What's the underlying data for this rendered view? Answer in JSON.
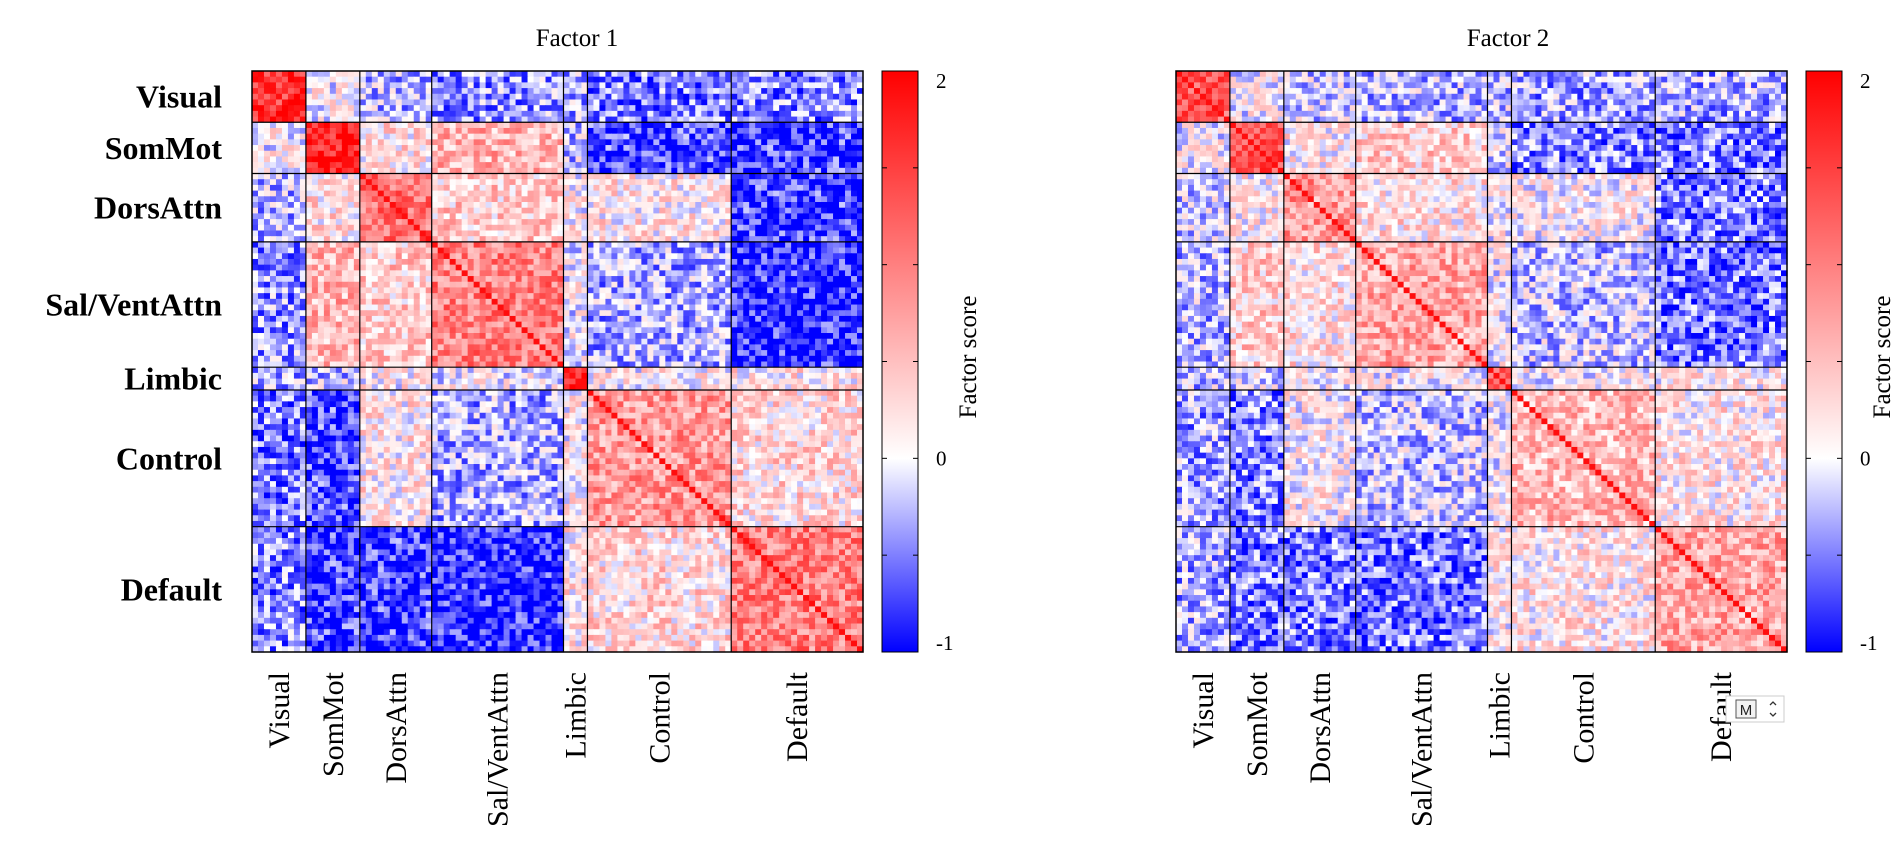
{
  "chart_data": [
    {
      "type": "heatmap",
      "title": "Factor 1",
      "networks": [
        "Visual",
        "SomMot",
        "DorsAttn",
        "Sal/VentAttn",
        "Limbic",
        "Control",
        "Default"
      ],
      "network_sizes": [
        9,
        9,
        12,
        22,
        4,
        24,
        22
      ],
      "colorbar": {
        "label": "Factor score",
        "range": [
          -1,
          2
        ],
        "ticks": [
          "2",
          "0",
          "-1"
        ],
        "tick_values": [
          2,
          0,
          -1
        ],
        "colors": [
          "#0000ff",
          "#ffffff",
          "#ff0000"
        ]
      },
      "block_means": [
        [
          1.6,
          0.05,
          -0.25,
          -0.4,
          -0.3,
          -0.5,
          -0.45
        ],
        [
          0.05,
          1.8,
          0.25,
          0.6,
          -0.2,
          -0.7,
          -0.75
        ],
        [
          -0.25,
          0.25,
          1.1,
          0.4,
          0.1,
          0.2,
          -0.75
        ],
        [
          -0.4,
          0.6,
          0.4,
          1.0,
          0.0,
          -0.3,
          -0.85
        ],
        [
          -0.3,
          -0.2,
          0.1,
          0.0,
          1.5,
          0.1,
          0.2
        ],
        [
          -0.5,
          -0.7,
          0.2,
          -0.3,
          0.1,
          0.8,
          0.3
        ],
        [
          -0.45,
          -0.75,
          -0.75,
          -0.85,
          0.2,
          0.3,
          1.0
        ]
      ]
    },
    {
      "type": "heatmap",
      "title": "Factor 2",
      "networks": [
        "Visual",
        "SomMot",
        "DorsAttn",
        "Sal/VentAttn",
        "Limbic",
        "Control",
        "Default"
      ],
      "network_sizes": [
        9,
        9,
        12,
        22,
        4,
        24,
        22
      ],
      "colorbar": {
        "label": "Factor score",
        "range": [
          -1,
          2
        ],
        "ticks": [
          "2",
          "0",
          "-1"
        ],
        "tick_values": [
          2,
          0,
          -1
        ],
        "colors": [
          "#0000ff",
          "#ffffff",
          "#ff0000"
        ]
      },
      "block_means": [
        [
          1.3,
          0.02,
          -0.15,
          -0.25,
          -0.2,
          -0.35,
          -0.3
        ],
        [
          0.02,
          1.4,
          0.15,
          0.4,
          -0.1,
          -0.45,
          -0.5
        ],
        [
          -0.15,
          0.15,
          0.8,
          0.25,
          0.05,
          0.1,
          -0.5
        ],
        [
          -0.25,
          0.4,
          0.25,
          0.7,
          0.0,
          -0.2,
          -0.55
        ],
        [
          -0.2,
          -0.1,
          0.05,
          0.0,
          1.2,
          0.05,
          0.15
        ],
        [
          -0.35,
          -0.45,
          0.1,
          -0.2,
          0.05,
          0.55,
          0.2
        ],
        [
          -0.3,
          -0.5,
          -0.5,
          -0.55,
          0.15,
          0.2,
          0.7
        ]
      ]
    }
  ],
  "overlay_widget": {
    "icon": "m-letter-icon",
    "text": "M"
  }
}
